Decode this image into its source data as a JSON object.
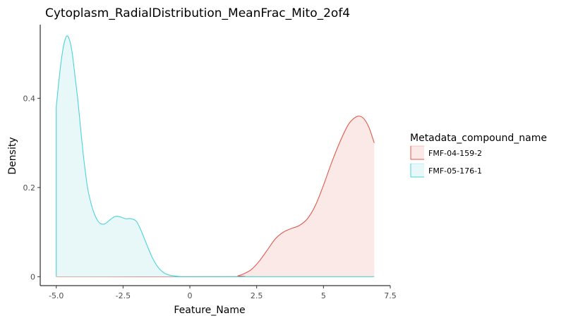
{
  "chart_data": {
    "type": "area",
    "title": "Cytoplasm_RadialDistribution_MeanFrac_Mito_2of4",
    "xlabel": "Feature_Name",
    "ylabel": "Density",
    "xlim": [
      -5.6,
      7.5
    ],
    "ylim": [
      -0.02,
      0.565
    ],
    "x_ticks": [
      {
        "value": -5,
        "label": "-5.0"
      },
      {
        "value": -2.5,
        "label": "-2.5"
      },
      {
        "value": 0,
        "label": "0"
      },
      {
        "value": 2.5,
        "label": "2.5"
      },
      {
        "value": 5,
        "label": "5"
      },
      {
        "value": 7.5,
        "label": "7.5"
      }
    ],
    "y_ticks": [
      {
        "value": 0,
        "label": "0"
      },
      {
        "value": 0.2,
        "label": "0.2"
      },
      {
        "value": 0.4,
        "label": "0.4"
      }
    ],
    "grid": false,
    "legend": {
      "title": "Metadata_compound_name",
      "placement": "right"
    },
    "series": [
      {
        "name": "FMF-04-159-2",
        "color": "#e05a4f",
        "fill": "#fbe9e7",
        "x": [
          -5.0,
          1.5,
          1.8,
          2.0,
          2.3,
          2.6,
          2.9,
          3.2,
          3.5,
          3.8,
          4.1,
          4.4,
          4.7,
          5.0,
          5.3,
          5.6,
          5.9,
          6.1,
          6.3,
          6.5,
          6.7,
          6.9,
          6.9
        ],
        "y": [
          0.0,
          0.0,
          0.002,
          0.006,
          0.016,
          0.035,
          0.06,
          0.085,
          0.1,
          0.108,
          0.115,
          0.13,
          0.16,
          0.205,
          0.255,
          0.3,
          0.338,
          0.353,
          0.36,
          0.355,
          0.335,
          0.3,
          0.3
        ]
      },
      {
        "name": "FMF-05-176-1",
        "color": "#4dd2d8",
        "fill": "#e8f8f9",
        "x": [
          -5.0,
          -5.0,
          -4.9,
          -4.8,
          -4.7,
          -4.6,
          -4.5,
          -4.4,
          -4.3,
          -4.2,
          -4.1,
          -4.0,
          -3.9,
          -3.8,
          -3.6,
          -3.4,
          -3.2,
          -3.0,
          -2.8,
          -2.6,
          -2.4,
          -2.2,
          -2.0,
          -1.8,
          -1.6,
          -1.4,
          -1.2,
          -1.0,
          -0.8,
          -0.6,
          -0.3,
          0.0,
          6.9
        ],
        "y": [
          0.0,
          0.38,
          0.44,
          0.49,
          0.525,
          0.54,
          0.53,
          0.5,
          0.45,
          0.4,
          0.34,
          0.28,
          0.23,
          0.19,
          0.145,
          0.122,
          0.118,
          0.127,
          0.135,
          0.134,
          0.13,
          0.13,
          0.124,
          0.1,
          0.07,
          0.042,
          0.022,
          0.01,
          0.004,
          0.002,
          0.0,
          0.0,
          0.0
        ]
      }
    ]
  }
}
